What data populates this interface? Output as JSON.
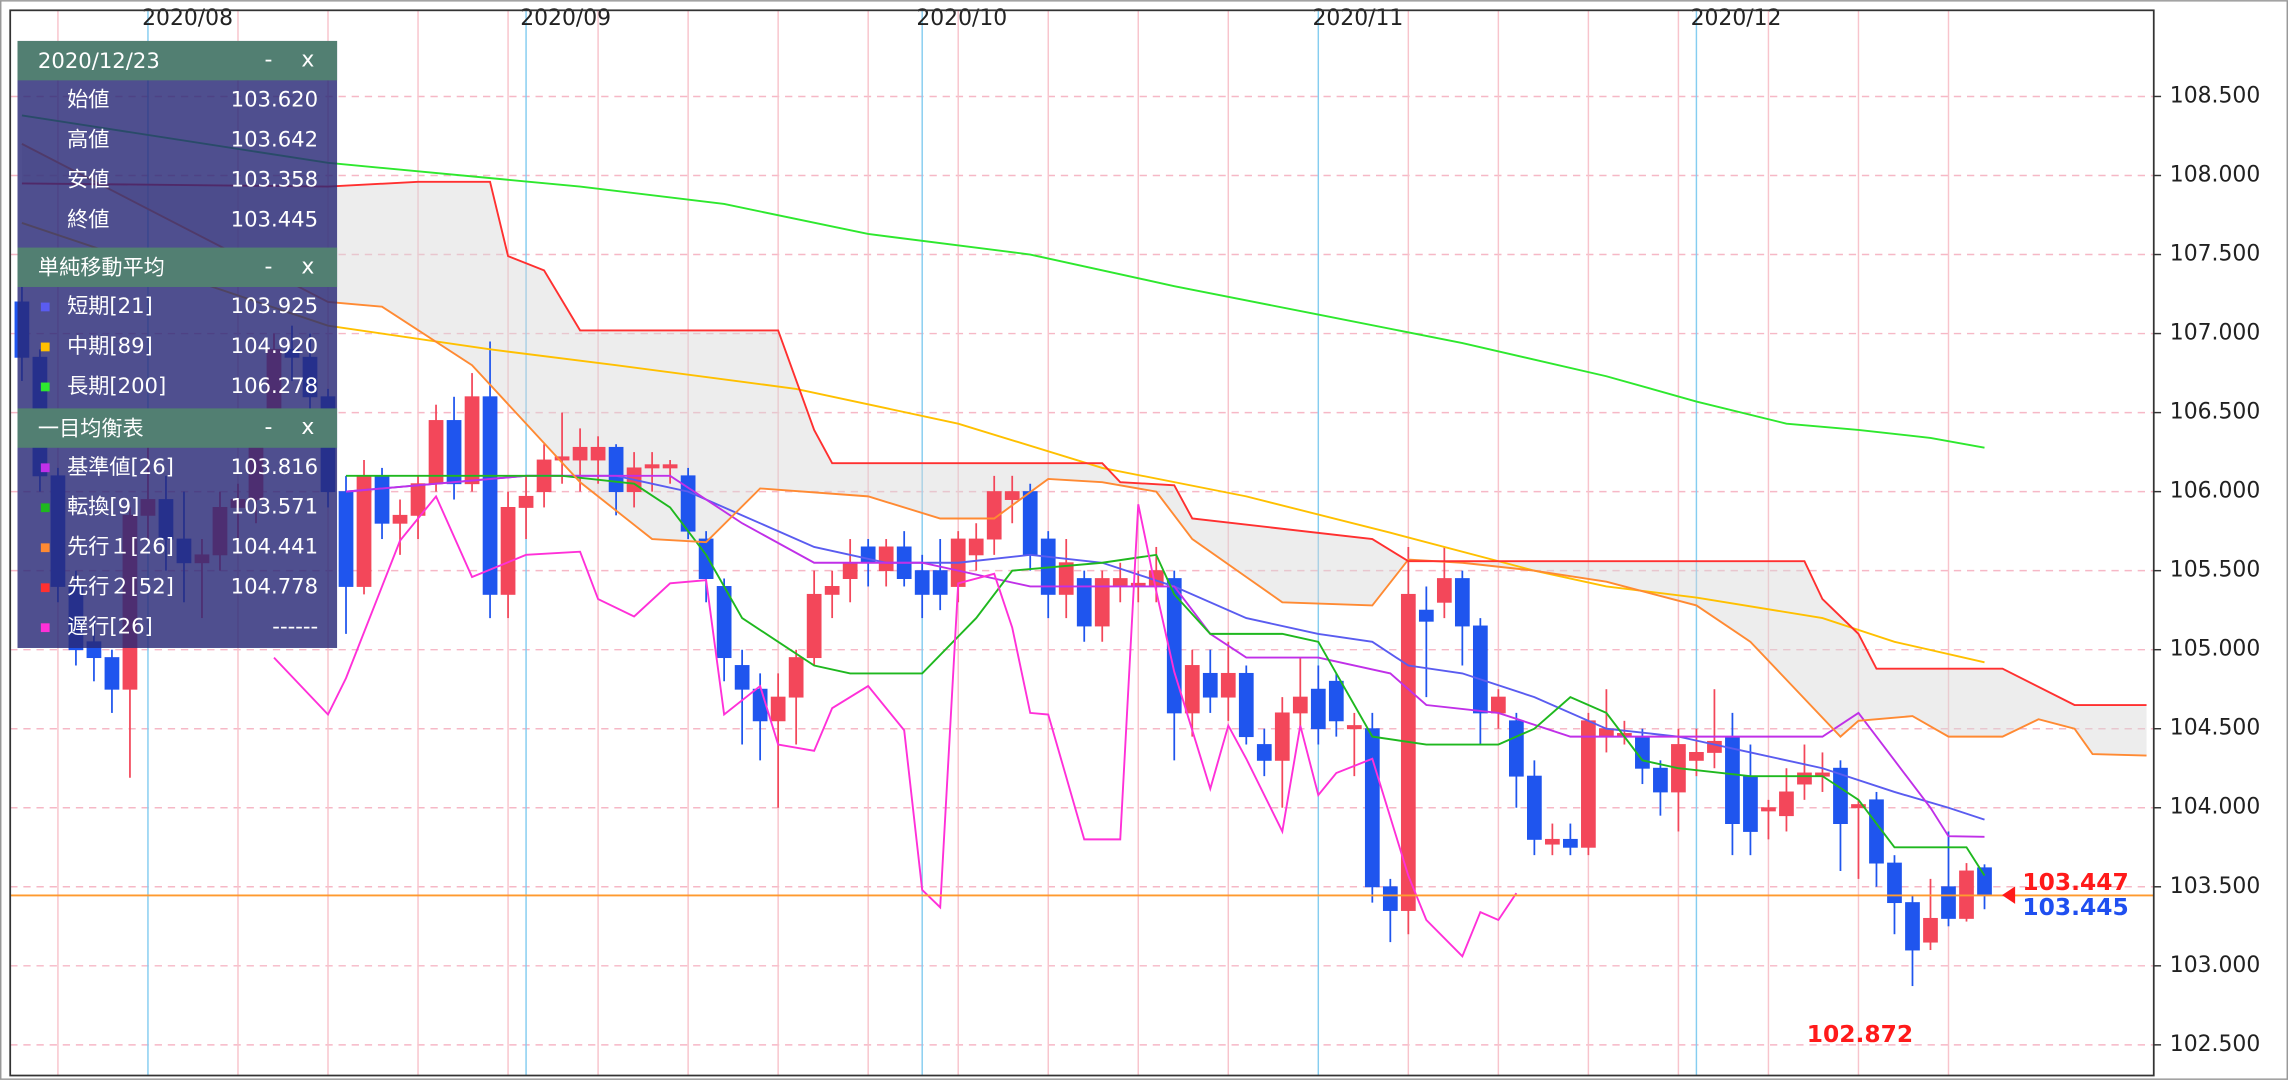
{
  "chart_data": {
    "type": "candlestick",
    "xlim": [
      -0.65,
      118.4
    ],
    "ylim": [
      102.306,
      109.045
    ],
    "xticks": [
      {
        "value": 7,
        "label": "2020/08"
      },
      {
        "value": 28,
        "label": "2020/09"
      },
      {
        "value": 50,
        "label": "2020/10"
      },
      {
        "value": 72,
        "label": "2020/11"
      },
      {
        "value": 93,
        "label": "2020/12"
      }
    ],
    "yticks": [
      {
        "value": 102.5,
        "label": "102.500"
      },
      {
        "value": 103,
        "label": "103.000"
      },
      {
        "value": 103.5,
        "label": "103.500"
      },
      {
        "value": 104,
        "label": "104.000"
      },
      {
        "value": 104.5,
        "label": "104.500"
      },
      {
        "value": 105,
        "label": "105.000"
      },
      {
        "value": 105.5,
        "label": "105.500"
      },
      {
        "value": 106,
        "label": "106.000"
      },
      {
        "value": 106.5,
        "label": "106.500"
      },
      {
        "value": 107,
        "label": "107.000"
      },
      {
        "value": 107.5,
        "label": "107.500"
      },
      {
        "value": 108,
        "label": "108.000"
      },
      {
        "value": 108.5,
        "label": "108.500"
      }
    ],
    "grid": true,
    "candles": {
      "up_color": "#f3475a",
      "down_color": "#1f55ee",
      "open": [
        107.2,
        106.85,
        106.1,
        105.4,
        105.05,
        104.95,
        104.75,
        105.85,
        105.95,
        105.7,
        105.55,
        105.6,
        105.9,
        105.95,
        106.45,
        106.9,
        106.85,
        106.6,
        106.0,
        105.4,
        106.1,
        105.8,
        105.85,
        106.05,
        106.45,
        106.05,
        106.6,
        105.35,
        105.9,
        106.0,
        106.2,
        106.2,
        106.2,
        106.28,
        106.0,
        106.15,
        106.15,
        106.1,
        105.7,
        105.4,
        104.9,
        104.75,
        104.55,
        104.7,
        104.95,
        105.35,
        105.45,
        105.65,
        105.5,
        105.65,
        105.5,
        105.5,
        105.4,
        105.6,
        105.7,
        105.95,
        106.0,
        105.7,
        105.35,
        105.45,
        105.15,
        105.4,
        105.4,
        105.4,
        105.45,
        104.6,
        104.85,
        104.7,
        104.85,
        104.4,
        104.3,
        104.6,
        104.75,
        104.8,
        104.5,
        104.5,
        103.5,
        103.35,
        105.25,
        105.3,
        105.45,
        105.15,
        104.6,
        104.55,
        104.2,
        103.77,
        103.8,
        103.75,
        104.45,
        104.45,
        104.45,
        104.25,
        104.1,
        104.3,
        104.35,
        104.45,
        104.2,
        103.98,
        103.95,
        104.15,
        104.2,
        104.25,
        104.0,
        104.05,
        103.65,
        103.4,
        103.15,
        103.5,
        103.3,
        103.62
      ],
      "high": [
        107.3,
        106.9,
        106.15,
        105.5,
        105.2,
        105.0,
        105.9,
        106.5,
        106.1,
        106.0,
        105.7,
        106.0,
        106.05,
        106.5,
        107.0,
        107.05,
        107.0,
        106.65,
        106.1,
        106.2,
        106.15,
        105.95,
        106.1,
        106.55,
        106.6,
        106.75,
        106.95,
        106.0,
        106.1,
        106.3,
        106.5,
        106.4,
        106.35,
        106.3,
        106.25,
        106.25,
        106.2,
        106.15,
        105.75,
        105.45,
        105.0,
        104.85,
        104.85,
        105.0,
        105.5,
        105.5,
        105.7,
        105.7,
        105.7,
        105.75,
        105.6,
        105.7,
        105.75,
        105.8,
        106.1,
        106.1,
        106.05,
        105.75,
        105.7,
        105.5,
        105.5,
        105.55,
        105.5,
        105.65,
        105.5,
        105.0,
        105.0,
        105.05,
        104.9,
        104.5,
        104.7,
        104.95,
        104.9,
        104.85,
        104.6,
        104.6,
        103.55,
        105.65,
        105.4,
        105.65,
        105.5,
        105.2,
        104.75,
        104.6,
        104.3,
        103.9,
        103.9,
        104.6,
        104.75,
        104.55,
        104.5,
        104.3,
        104.5,
        104.5,
        104.75,
        104.6,
        104.4,
        104.05,
        104.25,
        104.4,
        104.35,
        104.3,
        104.05,
        104.1,
        103.7,
        103.45,
        103.55,
        103.85,
        103.65,
        103.642
      ],
      "low": [
        106.7,
        106.0,
        105.3,
        104.9,
        104.8,
        104.6,
        104.19,
        105.7,
        105.5,
        105.3,
        105.2,
        105.5,
        105.7,
        105.8,
        106.4,
        106.7,
        106.5,
        105.9,
        105.1,
        105.35,
        105.7,
        105.6,
        105.7,
        106.0,
        105.95,
        106.0,
        105.2,
        105.2,
        105.7,
        105.9,
        106.05,
        106.0,
        106.05,
        105.85,
        105.9,
        106.0,
        106.05,
        105.7,
        105.3,
        104.8,
        104.4,
        104.3,
        104.0,
        104.4,
        104.9,
        105.2,
        105.3,
        105.4,
        105.4,
        105.4,
        105.2,
        105.25,
        105.3,
        105.5,
        105.6,
        105.8,
        105.5,
        105.2,
        105.2,
        105.05,
        105.05,
        105.3,
        105.3,
        105.3,
        104.3,
        104.45,
        104.6,
        104.55,
        104.4,
        104.2,
        104.0,
        104.5,
        104.4,
        104.45,
        104.2,
        103.4,
        103.15,
        103.2,
        104.7,
        105.2,
        104.9,
        104.4,
        104.5,
        104.0,
        103.7,
        103.7,
        103.7,
        103.7,
        104.35,
        104.4,
        104.15,
        103.95,
        103.85,
        104.2,
        104.25,
        103.7,
        103.7,
        103.8,
        103.85,
        104.05,
        104.1,
        103.6,
        103.55,
        103.5,
        103.2,
        102.872,
        103.1,
        103.25,
        103.28,
        103.358
      ],
      "close": [
        106.85,
        106.1,
        105.4,
        105.0,
        104.95,
        104.75,
        105.85,
        105.95,
        105.7,
        105.55,
        105.6,
        105.9,
        105.95,
        106.45,
        106.9,
        106.85,
        106.6,
        106.0,
        105.4,
        106.1,
        105.8,
        105.85,
        106.05,
        106.45,
        106.05,
        106.6,
        105.35,
        105.9,
        105.97,
        106.2,
        106.22,
        106.28,
        106.28,
        106.0,
        106.15,
        106.17,
        106.17,
        105.75,
        105.45,
        104.95,
        104.75,
        104.55,
        104.7,
        104.95,
        105.35,
        105.4,
        105.55,
        105.55,
        105.65,
        105.45,
        105.35,
        105.35,
        105.7,
        105.7,
        106.0,
        106.0,
        105.6,
        105.35,
        105.55,
        105.15,
        105.45,
        105.45,
        105.42,
        105.5,
        104.6,
        104.9,
        104.7,
        104.85,
        104.45,
        104.3,
        104.6,
        104.7,
        104.5,
        104.55,
        104.52,
        103.5,
        103.35,
        105.35,
        105.18,
        105.45,
        105.15,
        104.6,
        104.7,
        104.2,
        103.8,
        103.8,
        103.75,
        104.55,
        104.5,
        104.47,
        104.25,
        104.1,
        104.4,
        104.35,
        104.42,
        103.9,
        103.85,
        104.0,
        104.1,
        104.22,
        104.22,
        103.9,
        104.02,
        103.65,
        103.4,
        103.1,
        103.3,
        103.3,
        103.6,
        103.445
      ]
    },
    "info_panel": {
      "title": "2020/12/23",
      "rows": [
        {
          "label": "始値",
          "value": "103.620"
        },
        {
          "label": "高値",
          "value": "103.642"
        },
        {
          "label": "安値",
          "value": "103.358"
        },
        {
          "label": "終値",
          "value": "103.445"
        }
      ]
    },
    "buttons": {
      "minimize": "-",
      "close": "x"
    },
    "indicator_groups": [
      {
        "title": "単純移動平均",
        "series": [
          {
            "name": "短期[21]",
            "color": "#5a5cf0",
            "latest": "103.925",
            "x": [
              18,
              23,
              28,
              33,
              37,
              40,
              44,
              48,
              52,
              56,
              60,
              64,
              68,
              72,
              75,
              77,
              80,
              84,
              88,
              92,
              96,
              100,
              104,
              107,
              109
            ],
            "values": [
              106.0,
              106.05,
              106.1,
              106.1,
              106.0,
              105.85,
              105.65,
              105.55,
              105.55,
              105.6,
              105.55,
              105.4,
              105.2,
              105.1,
              105.05,
              104.9,
              104.85,
              104.7,
              104.5,
              104.45,
              104.35,
              104.25,
              104.1,
              104.0,
              103.925
            ]
          },
          {
            "name": "中期[89]",
            "color": "#ffc000",
            "latest": "104.920",
            "x": [
              0,
              17,
              26,
              33,
              43,
              52,
              60,
              68,
              76,
              84,
              88,
              93,
              100,
              104,
              109
            ],
            "values": [
              107.7,
              107.05,
              106.9,
              106.8,
              106.65,
              106.43,
              106.15,
              105.97,
              105.74,
              105.5,
              105.4,
              105.33,
              105.2,
              105.05,
              104.92
            ]
          },
          {
            "name": "長期[200]",
            "color": "#2ee82e",
            "latest": "106.278",
            "x": [
              0,
              17,
              31,
              39,
              47,
              56,
              64,
              72,
              80,
              88,
              93,
              98,
              102,
              106,
              109
            ],
            "values": [
              108.38,
              108.08,
              107.93,
              107.82,
              107.63,
              107.5,
              107.3,
              107.12,
              106.94,
              106.73,
              106.57,
              106.43,
              106.39,
              106.34,
              106.278
            ]
          }
        ]
      },
      {
        "title": "一目均衡表",
        "cloud_color": "#d8d8d8",
        "series": [
          {
            "name": "基準値[26]",
            "color": "#c030e8",
            "latest": "103.816",
            "x": [
              18,
              28,
              36,
              40,
              44,
              50,
              56,
              60,
              64,
              66,
              68,
              72,
              76,
              78,
              82,
              86,
              90,
              96,
              100,
              102,
              104,
              106,
              107,
              109
            ],
            "values": [
              106.0,
              106.1,
              106.1,
              105.8,
              105.55,
              105.55,
              105.4,
              105.4,
              105.4,
              105.1,
              104.95,
              104.95,
              104.85,
              104.65,
              104.6,
              104.45,
              104.45,
              104.45,
              104.45,
              104.6,
              104.3,
              104.0,
              103.82,
              103.816
            ]
          },
          {
            "name": "転換[9]",
            "color": "#1fb81f",
            "latest": "103.571",
            "x": [
              18,
              24,
              30,
              34,
              36,
              38,
              40,
              42,
              44,
              46,
              50,
              53,
              55,
              60,
              63,
              64,
              66,
              70,
              72,
              75,
              78,
              82,
              84,
              86,
              88,
              90,
              92,
              96,
              100,
              102,
              104,
              108,
              109
            ],
            "values": [
              106.1,
              106.1,
              106.1,
              106.05,
              105.9,
              105.6,
              105.2,
              105.05,
              104.9,
              104.85,
              104.85,
              105.2,
              105.5,
              105.55,
              105.6,
              105.35,
              105.1,
              105.1,
              105.05,
              104.45,
              104.4,
              104.4,
              104.5,
              104.7,
              104.6,
              104.3,
              104.25,
              104.2,
              104.2,
              104.05,
              103.75,
              103.75,
              103.571
            ]
          },
          {
            "name": "先行１[26]",
            "color": "#ff8a33",
            "latest": "104.441",
            "x": [
              0,
              17,
              20,
              25,
              28,
              31,
              35,
              38,
              41,
              47,
              51,
              54,
              57,
              60,
              63,
              65,
              68,
              70,
              75,
              77,
              80,
              84,
              88,
              93,
              96,
              98,
              101,
              102,
              105,
              107,
              110,
              112,
              114,
              115,
              118
            ],
            "values": [
              108.2,
              107.2,
              107.17,
              106.8,
              106.43,
              106.06,
              105.7,
              105.68,
              106.02,
              105.97,
              105.83,
              105.83,
              106.08,
              106.06,
              106.0,
              105.7,
              105.46,
              105.3,
              105.28,
              105.57,
              105.55,
              105.5,
              105.43,
              105.28,
              105.05,
              104.81,
              104.45,
              104.55,
              104.58,
              104.45,
              104.45,
              104.56,
              104.5,
              104.34,
              104.33
            ]
          },
          {
            "name": "先行２[52]",
            "color": "#ff3030",
            "latest": "104.778",
            "x": [
              0,
              17,
              22,
              26,
              27,
              29,
              31,
              42,
              44,
              45,
              60,
              61,
              64,
              65,
              75,
              77,
              99,
              100,
              102,
              103,
              110,
              114,
              118
            ],
            "values": [
              107.95,
              107.93,
              107.96,
              107.96,
              107.49,
              107.4,
              107.02,
              107.02,
              106.39,
              106.18,
              106.18,
              106.06,
              106.04,
              105.83,
              105.7,
              105.56,
              105.56,
              105.32,
              105.1,
              104.88,
              104.88,
              104.65,
              104.65
            ]
          },
          {
            "name": "遅行[26]",
            "color": "#ff30d8",
            "latest": "------",
            "x": [
              14,
              17,
              18,
              21,
              23,
              25,
              28,
              31,
              32,
              34,
              36,
              38,
              39,
              41,
              42,
              44,
              45,
              47,
              49,
              50,
              51,
              52,
              54,
              55,
              56,
              57,
              59,
              61,
              62,
              63,
              64,
              66,
              67,
              68,
              70,
              71,
              72,
              73,
              75,
              77,
              78,
              80,
              81,
              82,
              83
            ],
            "values": [
              104.95,
              104.59,
              104.82,
              105.69,
              105.97,
              105.46,
              105.6,
              105.62,
              105.32,
              105.21,
              105.42,
              105.44,
              104.59,
              104.77,
              104.4,
              104.36,
              104.63,
              104.77,
              104.49,
              103.48,
              103.37,
              105.42,
              105.48,
              105.14,
              104.6,
              104.59,
              103.8,
              103.8,
              105.92,
              105.37,
              104.86,
              104.12,
              104.52,
              104.31,
              103.85,
              104.52,
              104.08,
              104.22,
              104.31,
              103.57,
              103.29,
              103.06,
              103.34,
              103.29,
              103.46
            ]
          }
        ]
      }
    ],
    "current_price": {
      "value": 103.445,
      "label": "103.445",
      "color": "#1f4ff0",
      "line_color": "#ff9a2e"
    },
    "ask_price": {
      "value": 103.447,
      "label": "103.447",
      "color": "#ff1a1a"
    },
    "low_label": {
      "x": 105,
      "value": 102.872,
      "label": "102.872",
      "color": "#ff1a1a"
    }
  }
}
